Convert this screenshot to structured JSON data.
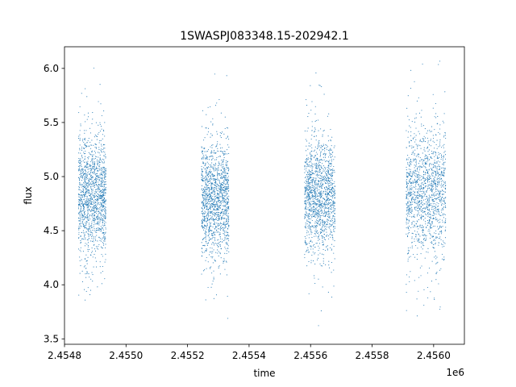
{
  "chart_data": {
    "type": "scatter",
    "title": "1SWASPJ083348.15-202942.1",
    "xlabel": "time",
    "ylabel": "flux",
    "x_offset_label": "1e6",
    "xlim": [
      2454800,
      2456100
    ],
    "ylim": [
      3.45,
      6.2
    ],
    "x_ticks": [
      {
        "value": 2454800,
        "label": "2.4548"
      },
      {
        "value": 2455000,
        "label": "2.4550"
      },
      {
        "value": 2455200,
        "label": "2.4552"
      },
      {
        "value": 2455400,
        "label": "2.4554"
      },
      {
        "value": 2455600,
        "label": "2.4556"
      },
      {
        "value": 2455800,
        "label": "2.4558"
      },
      {
        "value": 2456000,
        "label": "2.4560"
      }
    ],
    "y_ticks": [
      {
        "value": 3.5,
        "label": "3.5"
      },
      {
        "value": 4.0,
        "label": "4.0"
      },
      {
        "value": 4.5,
        "label": "4.5"
      },
      {
        "value": 5.0,
        "label": "5.0"
      },
      {
        "value": 5.5,
        "label": "5.5"
      },
      {
        "value": 6.0,
        "label": "6.0"
      }
    ],
    "grid": false,
    "marker_color": "#1f77b4",
    "series": [
      {
        "seasons": [
          {
            "x_start": 2454845,
            "x_end": 2454935,
            "y_center": 4.82,
            "y_spread": 0.27,
            "y_min": 3.85,
            "y_max": 6.05
          },
          {
            "x_start": 2455245,
            "x_end": 2455335,
            "y_center": 4.78,
            "y_spread": 0.26,
            "y_min": 3.65,
            "y_max": 6.05
          },
          {
            "x_start": 2455580,
            "x_end": 2455680,
            "y_center": 4.82,
            "y_spread": 0.25,
            "y_min": 3.58,
            "y_max": 6.03
          },
          {
            "x_start": 2455910,
            "x_end": 2456040,
            "y_center": 4.85,
            "y_spread": 0.28,
            "y_min": 3.58,
            "y_max": 6.08
          }
        ]
      }
    ]
  }
}
